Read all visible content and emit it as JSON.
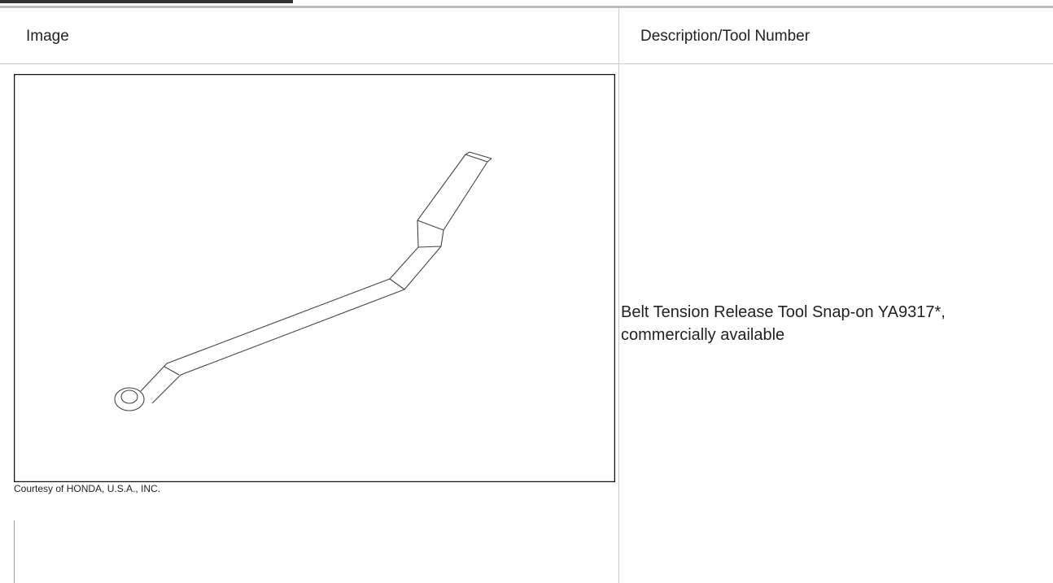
{
  "table": {
    "headers": [
      "Image",
      "Description/Tool Number"
    ],
    "rows": [
      [
        "Courtesy of HONDA, U.S.A., INC.",
        "Belt Tension Release Tool Snap-on YA9317*, commercially available"
      ]
    ]
  }
}
